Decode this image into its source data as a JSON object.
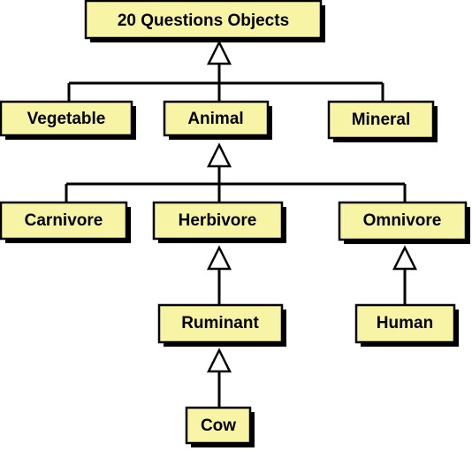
{
  "diagram": {
    "nodes": {
      "root": "20 Questions Objects",
      "vegetable": "Vegetable",
      "animal": "Animal",
      "mineral": "Mineral",
      "carnivore": "Carnivore",
      "herbivore": "Herbivore",
      "omnivore": "Omnivore",
      "ruminant": "Ruminant",
      "human": "Human",
      "cow": "Cow"
    },
    "edges": [
      {
        "from": "vegetable",
        "to": "root"
      },
      {
        "from": "animal",
        "to": "root"
      },
      {
        "from": "mineral",
        "to": "root"
      },
      {
        "from": "carnivore",
        "to": "animal"
      },
      {
        "from": "herbivore",
        "to": "animal"
      },
      {
        "from": "omnivore",
        "to": "animal"
      },
      {
        "from": "ruminant",
        "to": "herbivore"
      },
      {
        "from": "human",
        "to": "omnivore"
      },
      {
        "from": "cow",
        "to": "ruminant"
      }
    ],
    "colors": {
      "node_fill": "#f8f4a6",
      "border": "#000000",
      "arrow_fill": "#ffffff"
    }
  }
}
